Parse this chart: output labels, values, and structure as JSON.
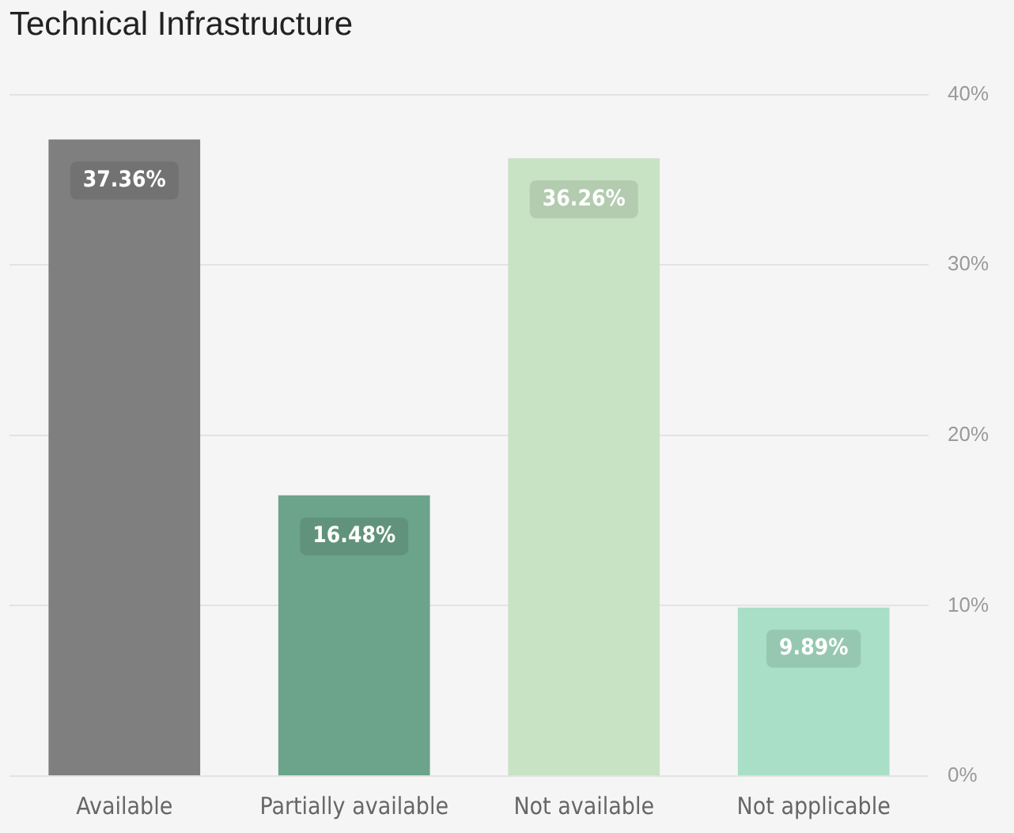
{
  "chart_data": {
    "type": "bar",
    "title": "Technical Infrastructure",
    "categories": [
      "Available",
      "Partially available",
      "Not available",
      "Not applicable"
    ],
    "values": [
      37.36,
      16.48,
      36.26,
      9.89
    ],
    "colors": [
      "#7f7f7f",
      "#6ca48b",
      "#c8e3c3",
      "#a8dfc6"
    ],
    "value_labels": [
      "37.36%",
      "16.48%",
      "36.26%",
      "9.89%"
    ],
    "ylim": [
      0,
      40
    ],
    "yticks": [
      {
        "value": 0,
        "label": "0%"
      },
      {
        "value": 10,
        "label": "10%"
      },
      {
        "value": 20,
        "label": "20%"
      },
      {
        "value": 30,
        "label": "30%"
      },
      {
        "value": 40,
        "label": "40%"
      }
    ],
    "grid": "y",
    "legend": false
  }
}
